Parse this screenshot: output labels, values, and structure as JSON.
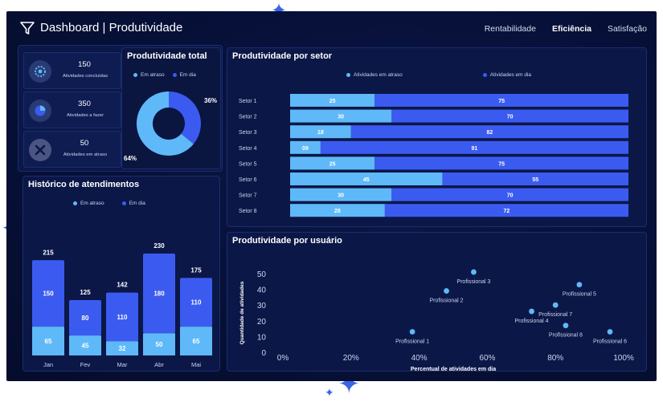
{
  "header": {
    "title": "Dashboard | Produtividade",
    "nav": [
      {
        "label": "Rentabilidade",
        "active": false
      },
      {
        "label": "Eficiência",
        "active": true
      },
      {
        "label": "Satisfação",
        "active": false
      }
    ]
  },
  "kpis": [
    {
      "value": "150",
      "label": "Atividades concluídas",
      "icon": "gears-icon"
    },
    {
      "value": "350",
      "label": "Atividades a fazer",
      "icon": "pie-chart-icon"
    },
    {
      "value": "50",
      "label": "Atividades em atraso",
      "icon": "close-icon"
    }
  ],
  "colors": {
    "em_atraso": "#5fb9f8",
    "em_dia": "#3b5bf0"
  },
  "panels": {
    "total": "Produtividade total",
    "setor": "Produtividade por setor",
    "historico": "Histórico de atendimentos",
    "usuario": "Produtividade por usuário"
  },
  "legend": {
    "em_atraso": "Em atraso",
    "em_dia": "Em dia",
    "atividades_atraso": "Atividades em atraso",
    "atividades_dia": "Atividades em dia"
  },
  "chart_data": [
    {
      "type": "pie",
      "id": "produtividade-total",
      "labels": [
        "Em atraso",
        "Em dia"
      ],
      "values": [
        64,
        36
      ],
      "value_labels": [
        "64%",
        "36%"
      ]
    },
    {
      "type": "bar",
      "id": "produtividade-por-setor",
      "orientation": "horizontal",
      "stacked": true,
      "categories": [
        "Setor 1",
        "Setor 2",
        "Setor 3",
        "Setor 4",
        "Setor 5",
        "Setor 6",
        "Setor 7",
        "Setor 8"
      ],
      "series": [
        {
          "name": "Atividades em atraso",
          "values": [
            25,
            30,
            18,
            9,
            25,
            45,
            30,
            28
          ],
          "labels": [
            "25",
            "30",
            "18",
            "09",
            "25",
            "45",
            "30",
            "28"
          ]
        },
        {
          "name": "Atividades em dia",
          "values": [
            75,
            70,
            82,
            91,
            75,
            55,
            70,
            72
          ],
          "labels": [
            "75",
            "70",
            "82",
            "91",
            "75",
            "55",
            "70",
            "72"
          ]
        }
      ]
    },
    {
      "type": "bar",
      "id": "historico-de-atendimentos",
      "stacked": true,
      "categories": [
        "Jan",
        "Fev",
        "Mar",
        "Abr",
        "Mai"
      ],
      "totals": [
        215,
        125,
        142,
        230,
        175
      ],
      "series": [
        {
          "name": "Em atraso",
          "values": [
            65,
            45,
            32,
            50,
            65
          ]
        },
        {
          "name": "Em dia",
          "values": [
            150,
            80,
            110,
            180,
            110
          ]
        }
      ]
    },
    {
      "type": "scatter",
      "id": "produtividade-por-usuario",
      "xlabel": "Percentual de atividades em dia",
      "ylabel": "Quantidade de atividades",
      "xlim": [
        0,
        100
      ],
      "ylim": [
        0,
        50
      ],
      "xticks": [
        "0%",
        "20%",
        "40%",
        "60%",
        "80%",
        "100%"
      ],
      "yticks": [
        "0",
        "10",
        "20",
        "30",
        "40",
        "50"
      ],
      "points": [
        {
          "name": "Profissional 1",
          "x": 38,
          "y": 13
        },
        {
          "name": "Profissional 2",
          "x": 48,
          "y": 39
        },
        {
          "name": "Profissional 3",
          "x": 56,
          "y": 51
        },
        {
          "name": "Profissional 4",
          "x": 73,
          "y": 26
        },
        {
          "name": "Profissional 5",
          "x": 87,
          "y": 43
        },
        {
          "name": "Profissional 6",
          "x": 96,
          "y": 13
        },
        {
          "name": "Profissional 7",
          "x": 80,
          "y": 30
        },
        {
          "name": "Profissional 8",
          "x": 83,
          "y": 17
        }
      ]
    }
  ]
}
